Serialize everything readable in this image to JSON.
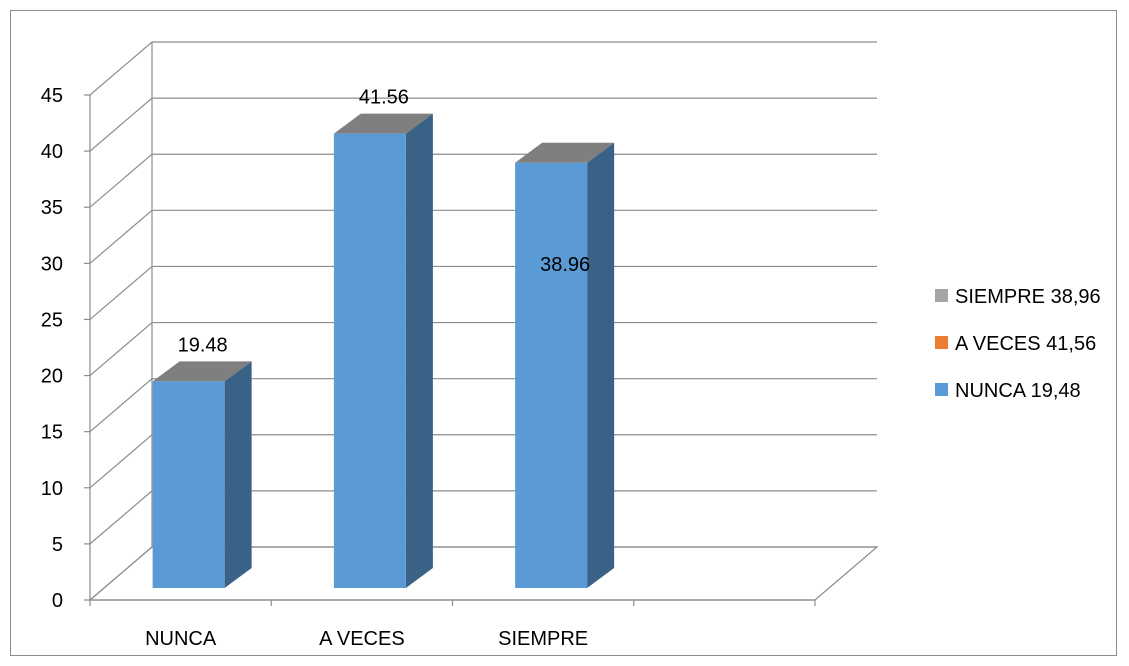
{
  "chart_data": {
    "type": "bar",
    "categories": [
      "NUNCA",
      "A VECES",
      "SIEMPRE"
    ],
    "values": [
      19.48,
      41.56,
      38.96
    ],
    "data_labels": [
      "19.48",
      "41.56",
      "38.96"
    ],
    "ylim": [
      0,
      45
    ],
    "yticks": [
      "0",
      "5",
      "10",
      "15",
      "20",
      "25",
      "30",
      "35",
      "40",
      "45"
    ],
    "grid": true,
    "three_d": true,
    "bar_color": "#5b9bd5",
    "legend": {
      "position": "right",
      "entries": [
        {
          "label": "SIEMPRE 38,96",
          "color": "#a5a5a5"
        },
        {
          "label": "A VECES 41,56",
          "color": "#ed7d31"
        },
        {
          "label": "NUNCA 19,48",
          "color": "#5b9bd5"
        }
      ]
    }
  }
}
